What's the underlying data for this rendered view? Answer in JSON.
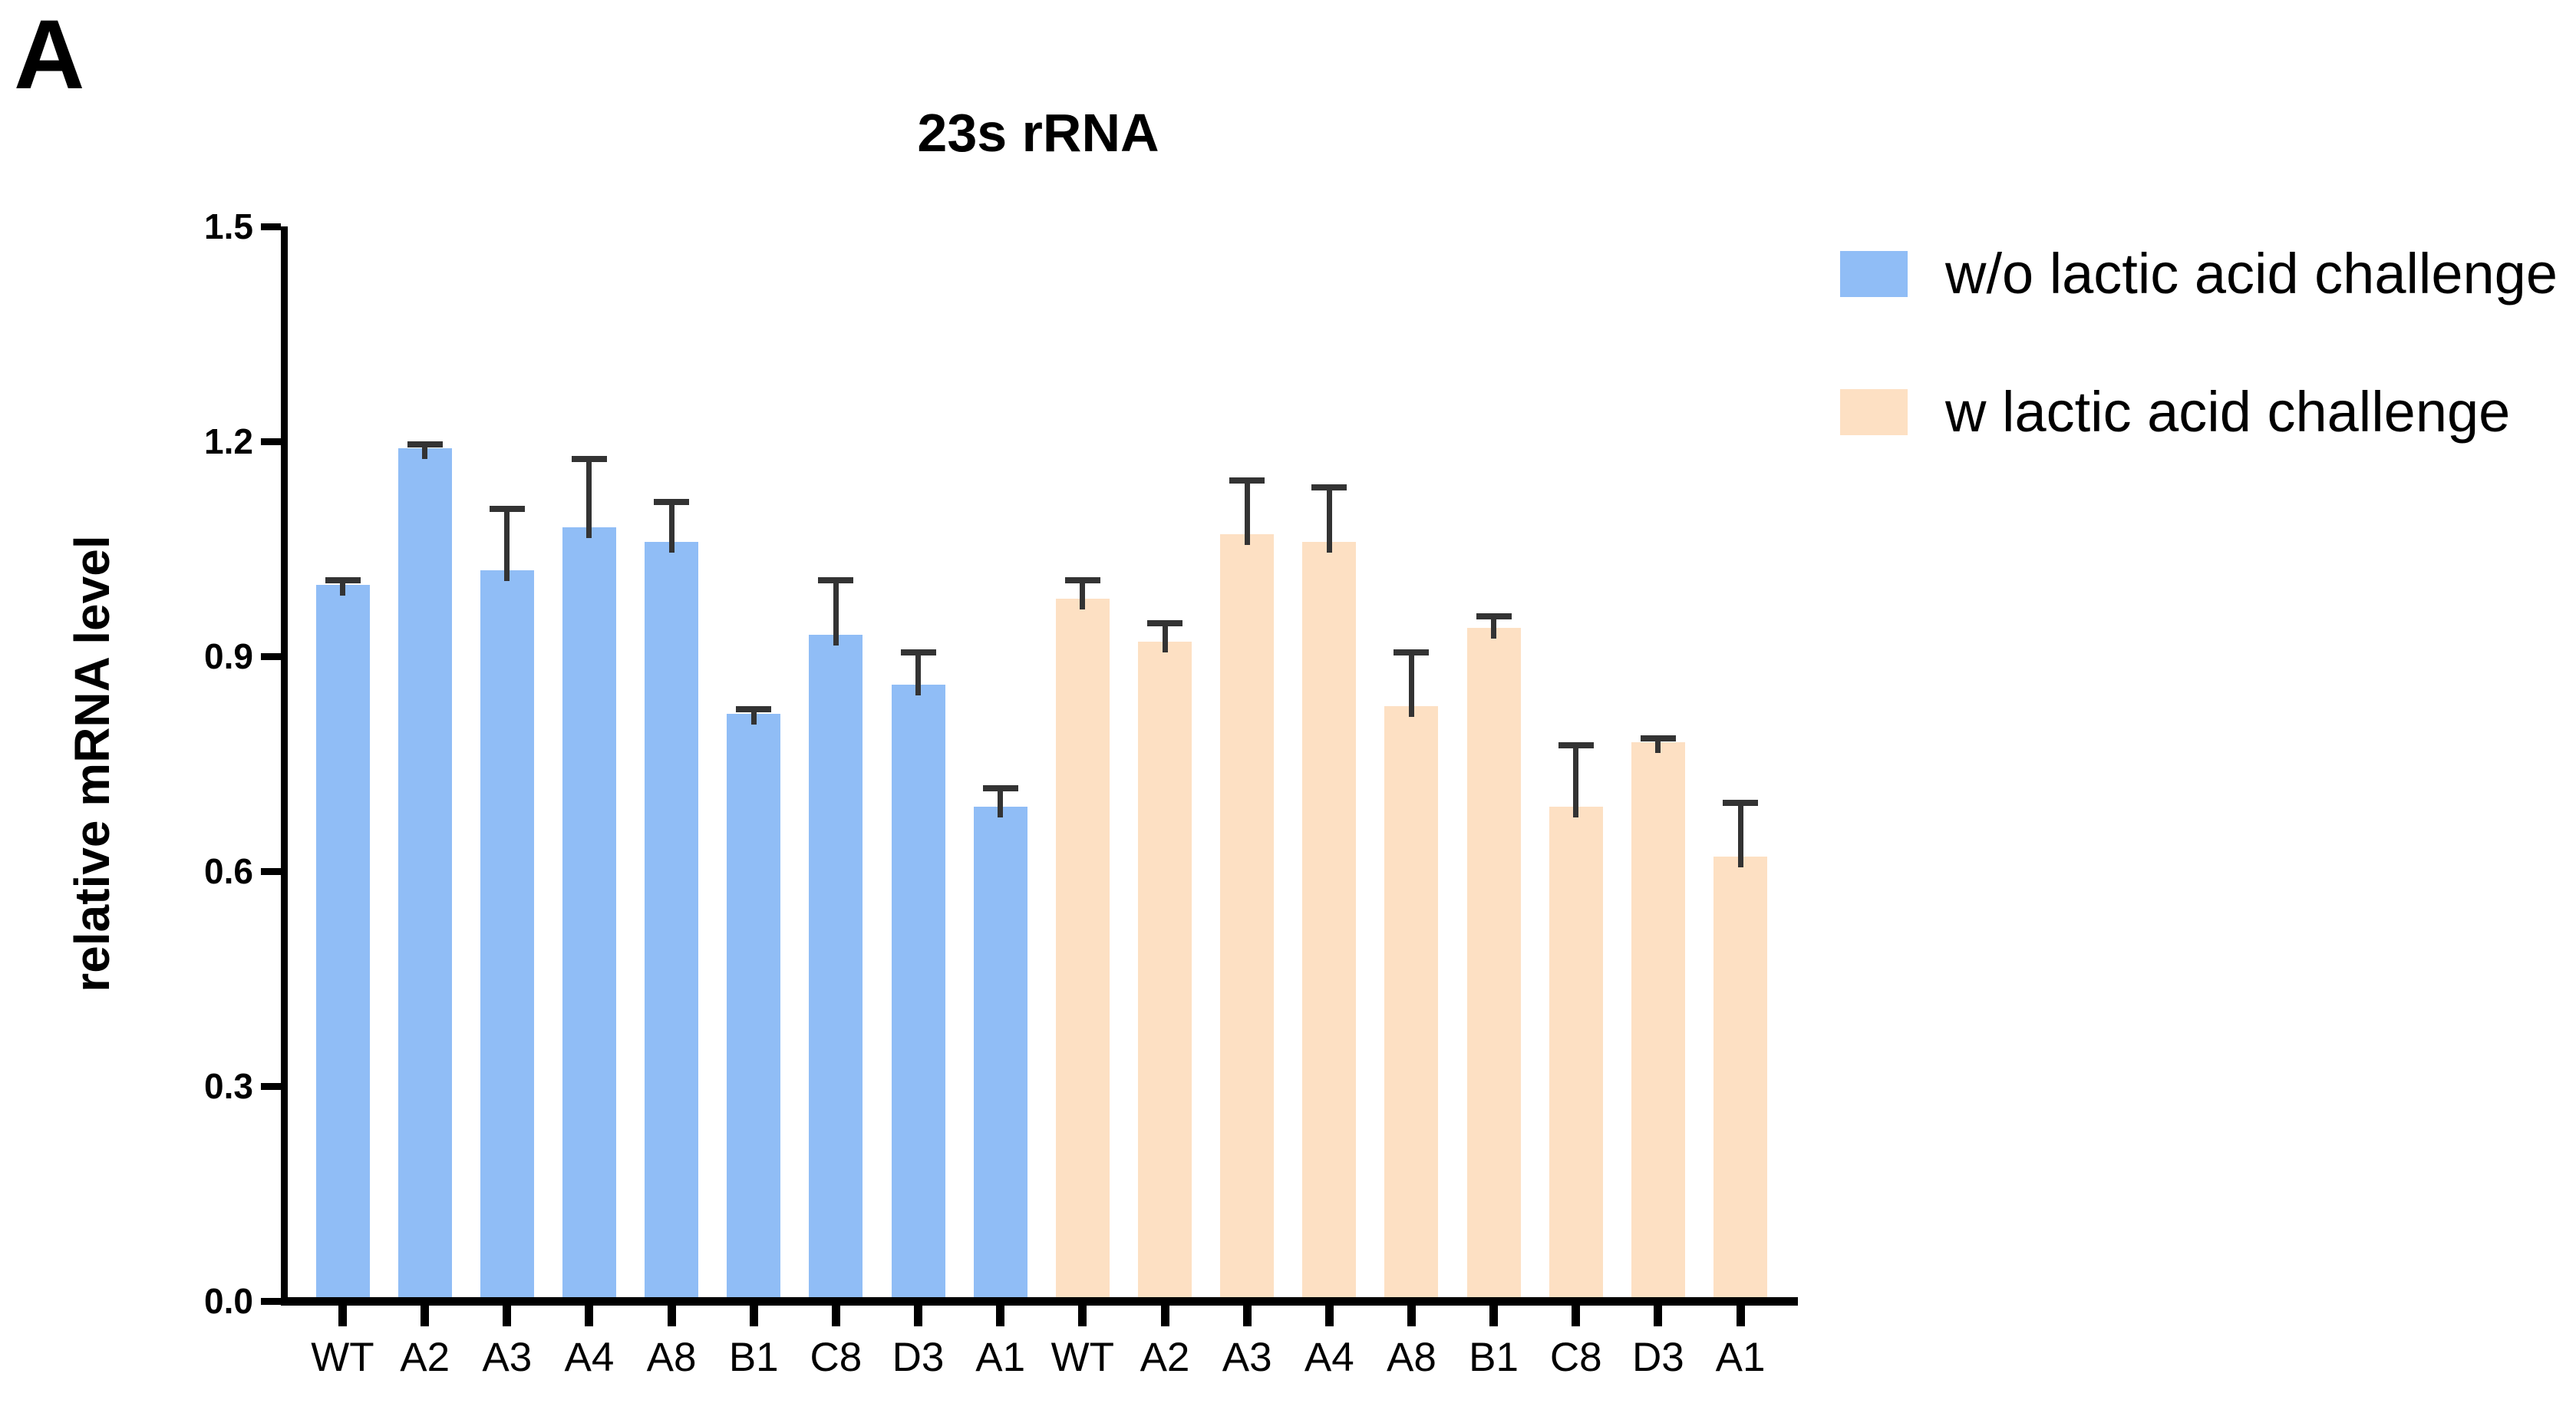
{
  "panel_label": "A",
  "chart_data": {
    "type": "bar",
    "title": "23s rRNA",
    "ylabel": "relative mRNA level",
    "xlabel": "",
    "ylim": [
      0.0,
      1.5
    ],
    "yticks": [
      "0.0",
      "0.3",
      "0.6",
      "0.9",
      "1.2",
      "1.5"
    ],
    "grid": false,
    "legend_position": "top-right",
    "bar_layout": "two contiguous groups of 9 bars sharing the same category labels",
    "categories": [
      "WT",
      "A2",
      "A3",
      "A4",
      "A8",
      "B1",
      "C8",
      "D3",
      "A1"
    ],
    "series": [
      {
        "name": "w/o lactic acid challenge",
        "color": "#90bdf6",
        "values": [
          1.0,
          1.19,
          1.02,
          1.08,
          1.06,
          0.82,
          0.93,
          0.86,
          0.69
        ],
        "errors_plus": [
          0.01,
          0.01,
          0.09,
          0.1,
          0.06,
          0.01,
          0.08,
          0.05,
          0.03
        ]
      },
      {
        "name": "w lactic acid challenge",
        "color": "#fde0c3",
        "values": [
          0.98,
          0.92,
          1.07,
          1.06,
          0.83,
          0.94,
          0.69,
          0.78,
          0.62
        ],
        "errors_plus": [
          0.03,
          0.03,
          0.08,
          0.08,
          0.08,
          0.02,
          0.09,
          0.01,
          0.08
        ]
      }
    ],
    "error_bar_color": "#333333",
    "axis_color": "#000000",
    "text_color": "#000000"
  }
}
